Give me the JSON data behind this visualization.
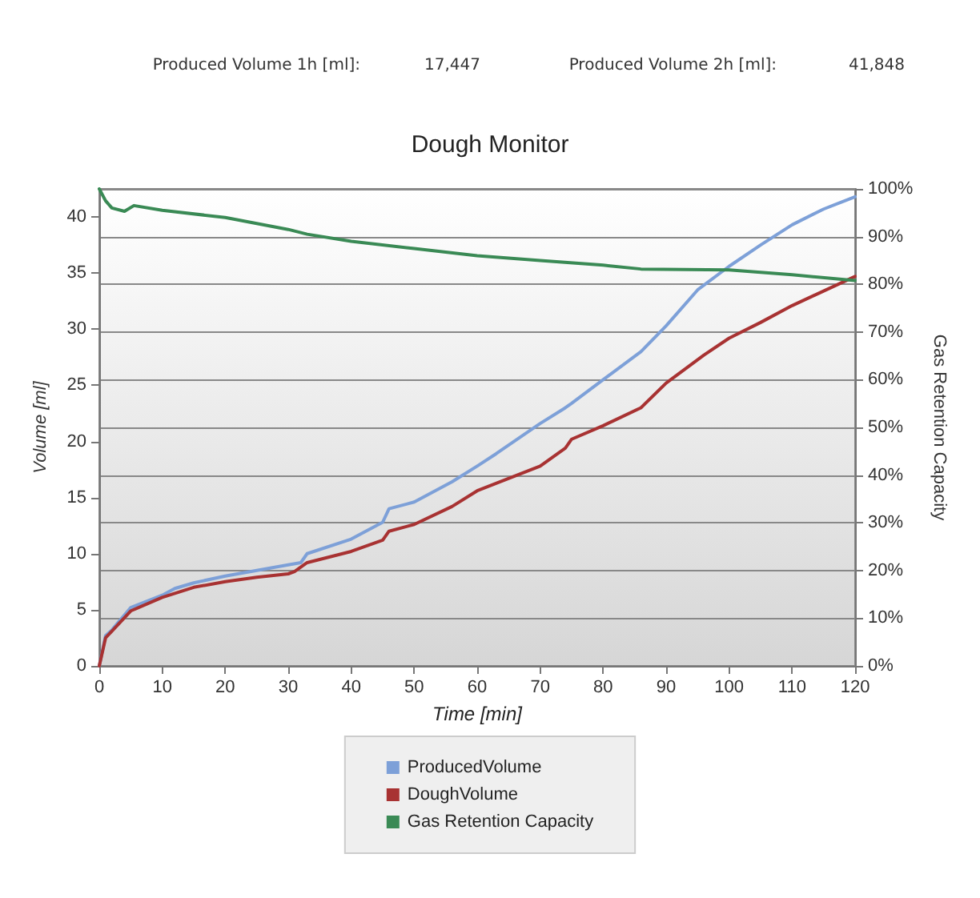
{
  "chart_data": {
    "type": "line",
    "title": "Dough Monitor",
    "xlabel": "Time [min]",
    "ylabel": "Volume [ml]",
    "y2label": "Gas Retention Capacity",
    "annotations": [
      "Produced Volume 1h [ml]:",
      "17,447",
      "Produced Volume 2h [ml]:",
      "41,848"
    ],
    "xlim": [
      0,
      120
    ],
    "xticks": [
      0,
      10,
      20,
      30,
      40,
      50,
      60,
      70,
      80,
      90,
      100,
      110,
      120
    ],
    "ylim": [
      0,
      42.5
    ],
    "yticks": [
      0,
      5,
      10,
      15,
      20,
      25,
      30,
      35,
      40
    ],
    "y2lim": [
      0,
      100
    ],
    "y2ticks": [
      {
        "value": 0,
        "label": "0%"
      },
      {
        "value": 10,
        "label": "10%"
      },
      {
        "value": 20,
        "label": "20%"
      },
      {
        "value": 30,
        "label": "30%"
      },
      {
        "value": 40,
        "label": "40%"
      },
      {
        "value": 50,
        "label": "50%"
      },
      {
        "value": 60,
        "label": "60%"
      },
      {
        "value": 70,
        "label": "70%"
      },
      {
        "value": 80,
        "label": "80%"
      },
      {
        "value": 90,
        "label": "90%"
      },
      {
        "value": 100,
        "label": "100%"
      }
    ],
    "grid": "y",
    "legend": "bottom",
    "marker": "none",
    "line_style": "solid",
    "series": [
      {
        "name": "ProducedVolume",
        "color": "#7da0d8",
        "x": [
          0,
          1,
          2,
          5,
          10,
          12,
          15,
          20,
          30,
          32,
          33,
          40,
          45,
          46,
          50,
          56,
          60,
          63,
          70,
          74,
          75,
          80,
          86,
          90,
          95,
          100,
          105,
          110,
          115,
          120
        ],
        "values": [
          0,
          2.7,
          3.2,
          5.2,
          6.3,
          6.9,
          7.4,
          8.0,
          9.0,
          9.2,
          10.0,
          11.3,
          12.8,
          14.0,
          14.6,
          16.4,
          17.8,
          18.9,
          21.6,
          23.0,
          23.4,
          25.5,
          28.0,
          30.3,
          33.5,
          35.6,
          37.5,
          39.3,
          40.7,
          41.8
        ]
      },
      {
        "name": "DoughVolume",
        "color": "#a83232",
        "x": [
          0,
          1,
          2,
          5,
          10,
          15,
          20,
          25,
          30,
          31,
          33,
          40,
          45,
          46,
          50,
          56,
          60,
          70,
          74,
          75,
          80,
          86,
          90,
          96,
          100,
          105,
          110,
          115,
          120
        ],
        "values": [
          0,
          2.5,
          3.1,
          4.9,
          6.1,
          7.0,
          7.5,
          7.9,
          8.2,
          8.4,
          9.2,
          10.2,
          11.2,
          12.0,
          12.6,
          14.2,
          15.6,
          17.8,
          19.4,
          20.2,
          21.4,
          23.0,
          25.2,
          27.7,
          29.2,
          30.6,
          32.1,
          33.4,
          34.7
        ]
      },
      {
        "name": "Gas Retention Capacity",
        "color": "#3a8a55",
        "axis": "y2",
        "x": [
          0,
          1,
          2,
          4,
          5.5,
          10,
          20,
          30,
          33,
          40,
          50,
          60,
          70,
          80,
          86,
          100,
          110,
          120
        ],
        "values": [
          100,
          97.5,
          96,
          95.3,
          96.5,
          95.5,
          94,
          91.5,
          90.5,
          89,
          87.5,
          86,
          85,
          84,
          83.2,
          83,
          82,
          80.8
        ]
      }
    ]
  }
}
